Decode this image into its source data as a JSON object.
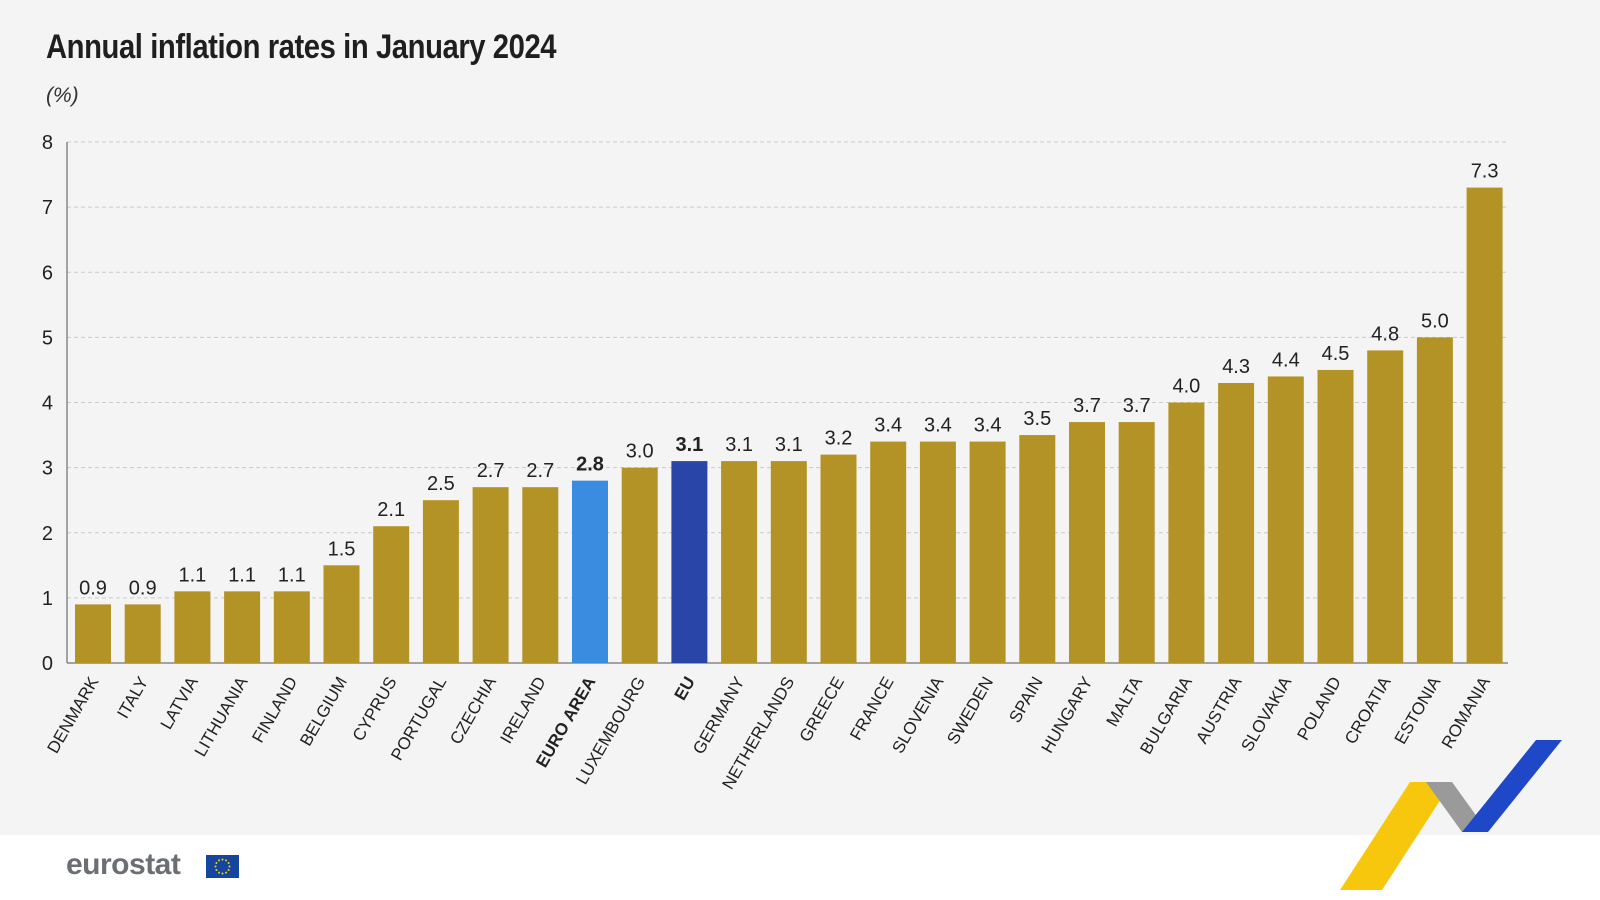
{
  "chart_data": {
    "type": "bar",
    "title": "Annual inflation rates in January 2024",
    "unit_label": "(%)",
    "xlabel": "",
    "ylabel": "",
    "ylim": [
      0,
      8
    ],
    "yticks": [
      0,
      1,
      2,
      3,
      4,
      5,
      6,
      7,
      8
    ],
    "grid": true,
    "categories": [
      "DENMARK",
      "ITALY",
      "LATVIA",
      "LITHUANIA",
      "FINLAND",
      "BELGIUM",
      "CYPRUS",
      "PORTUGAL",
      "CZECHIA",
      "IRELAND",
      "EURO AREA",
      "LUXEMBOURG",
      "EU",
      "GERMANY",
      "NETHERLANDS",
      "GREECE",
      "FRANCE",
      "SLOVENIA",
      "SWEDEN",
      "SPAIN",
      "HUNGARY",
      "MALTA",
      "BULGARIA",
      "AUSTRIA",
      "SLOVAKIA",
      "POLAND",
      "CROATIA",
      "ESTONIA",
      "ROMANIA"
    ],
    "values": [
      0.9,
      0.9,
      1.1,
      1.1,
      1.1,
      1.5,
      2.1,
      2.5,
      2.7,
      2.7,
      2.8,
      3.0,
      3.1,
      3.1,
      3.1,
      3.2,
      3.4,
      3.4,
      3.4,
      3.5,
      3.7,
      3.7,
      4.0,
      4.3,
      4.4,
      4.5,
      4.8,
      5.0,
      7.3
    ],
    "value_labels": [
      "0.9",
      "0.9",
      "1.1",
      "1.1",
      "1.1",
      "1.5",
      "2.1",
      "2.5",
      "2.7",
      "2.7",
      "2.8",
      "3.0",
      "3.1",
      "3.1",
      "3.1",
      "3.2",
      "3.4",
      "3.4",
      "3.4",
      "3.5",
      "3.7",
      "3.7",
      "4.0",
      "4.3",
      "4.4",
      "4.5",
      "4.8",
      "5.0",
      "7.3"
    ],
    "highlight": {
      "EURO AREA": "euro_area",
      "EU": "eu"
    },
    "bold_categories": [
      "EURO AREA",
      "EU"
    ],
    "colors": {
      "default": "#b39226",
      "euro_area": "#3a8ce0",
      "eu": "#2a45a8",
      "grid": "#c9c9c9",
      "axis": "#888888"
    }
  },
  "footer": {
    "logo_text": "eurostat",
    "logo_icon": "eu-flag-icon"
  }
}
